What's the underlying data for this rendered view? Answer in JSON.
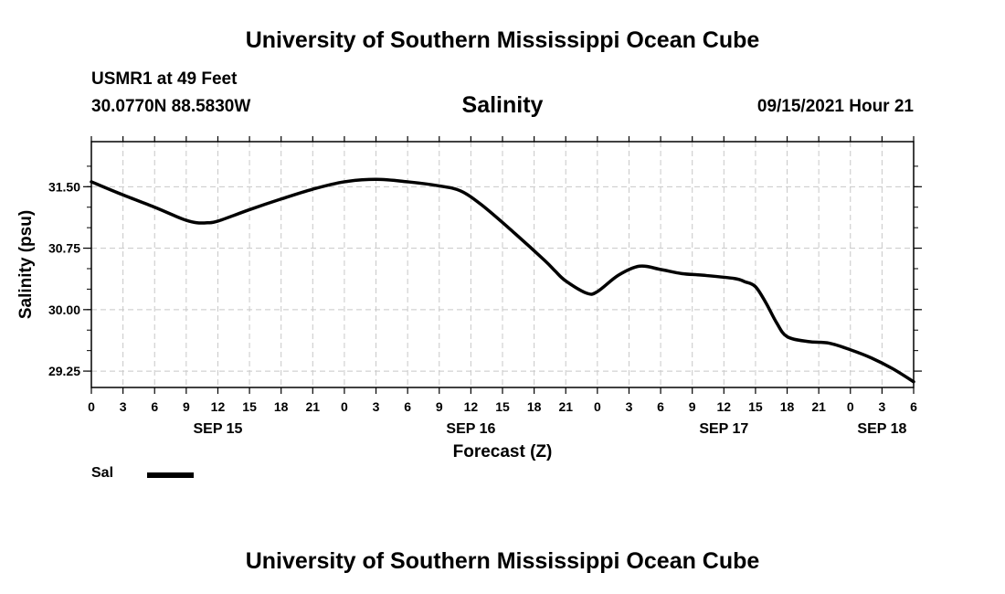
{
  "header": {
    "main_title": "University of Southern Mississippi Ocean Cube",
    "station": "USMR1 at 49 Feet",
    "coordinates": "30.0770N  88.5830W",
    "chart_title": "Salinity",
    "datetime": "09/15/2021 Hour 21"
  },
  "footer": {
    "title": "University of Southern Mississippi Ocean Cube"
  },
  "legend": {
    "label": "Sal",
    "color": "#000000"
  },
  "chart_data": {
    "type": "line",
    "title": "Salinity",
    "xlabel": "Forecast (Z)",
    "ylabel": "Salinity (psu)",
    "xlim": [
      0,
      78
    ],
    "ylim": [
      29.05,
      32.05
    ],
    "x_ticks": [
      0,
      3,
      6,
      9,
      12,
      15,
      18,
      21,
      24,
      27,
      30,
      33,
      36,
      39,
      42,
      45,
      48,
      51,
      54,
      57,
      60,
      63,
      66,
      69,
      72,
      75,
      78
    ],
    "x_tick_labels": [
      "0",
      "3",
      "6",
      "9",
      "12",
      "15",
      "18",
      "21",
      "0",
      "3",
      "6",
      "9",
      "12",
      "15",
      "18",
      "21",
      "0",
      "3",
      "6",
      "9",
      "12",
      "15",
      "18",
      "21",
      "0",
      "3",
      "6"
    ],
    "date_labels": [
      {
        "x": 12,
        "label": "SEP 15"
      },
      {
        "x": 36,
        "label": "SEP 16"
      },
      {
        "x": 60,
        "label": "SEP 17"
      },
      {
        "x": 75,
        "label": "SEP 18"
      }
    ],
    "y_ticks": [
      29.25,
      30.0,
      30.75,
      31.5
    ],
    "y_tick_labels": [
      "29.25",
      "30.00",
      "30.75",
      "31.50"
    ],
    "grid": true,
    "series": [
      {
        "name": "Sal",
        "color": "#000000",
        "x": [
          0,
          3,
          6,
          8,
          9,
          10,
          11,
          12,
          15,
          18,
          21,
          24,
          27,
          30,
          33,
          35,
          37,
          40,
          43,
          44,
          45,
          47,
          48,
          50,
          52,
          54,
          56,
          58,
          61,
          62,
          63,
          64,
          65,
          66,
          68,
          70,
          72,
          74,
          76,
          78
        ],
        "values": [
          31.56,
          31.4,
          31.25,
          31.14,
          31.09,
          31.06,
          31.06,
          31.08,
          31.22,
          31.35,
          31.47,
          31.56,
          31.59,
          31.56,
          31.51,
          31.45,
          31.28,
          30.95,
          30.6,
          30.47,
          30.35,
          30.2,
          30.22,
          30.42,
          30.53,
          30.49,
          30.44,
          30.42,
          30.38,
          30.34,
          30.28,
          30.08,
          29.84,
          29.67,
          29.61,
          29.59,
          29.51,
          29.41,
          29.28,
          29.12
        ]
      }
    ]
  }
}
